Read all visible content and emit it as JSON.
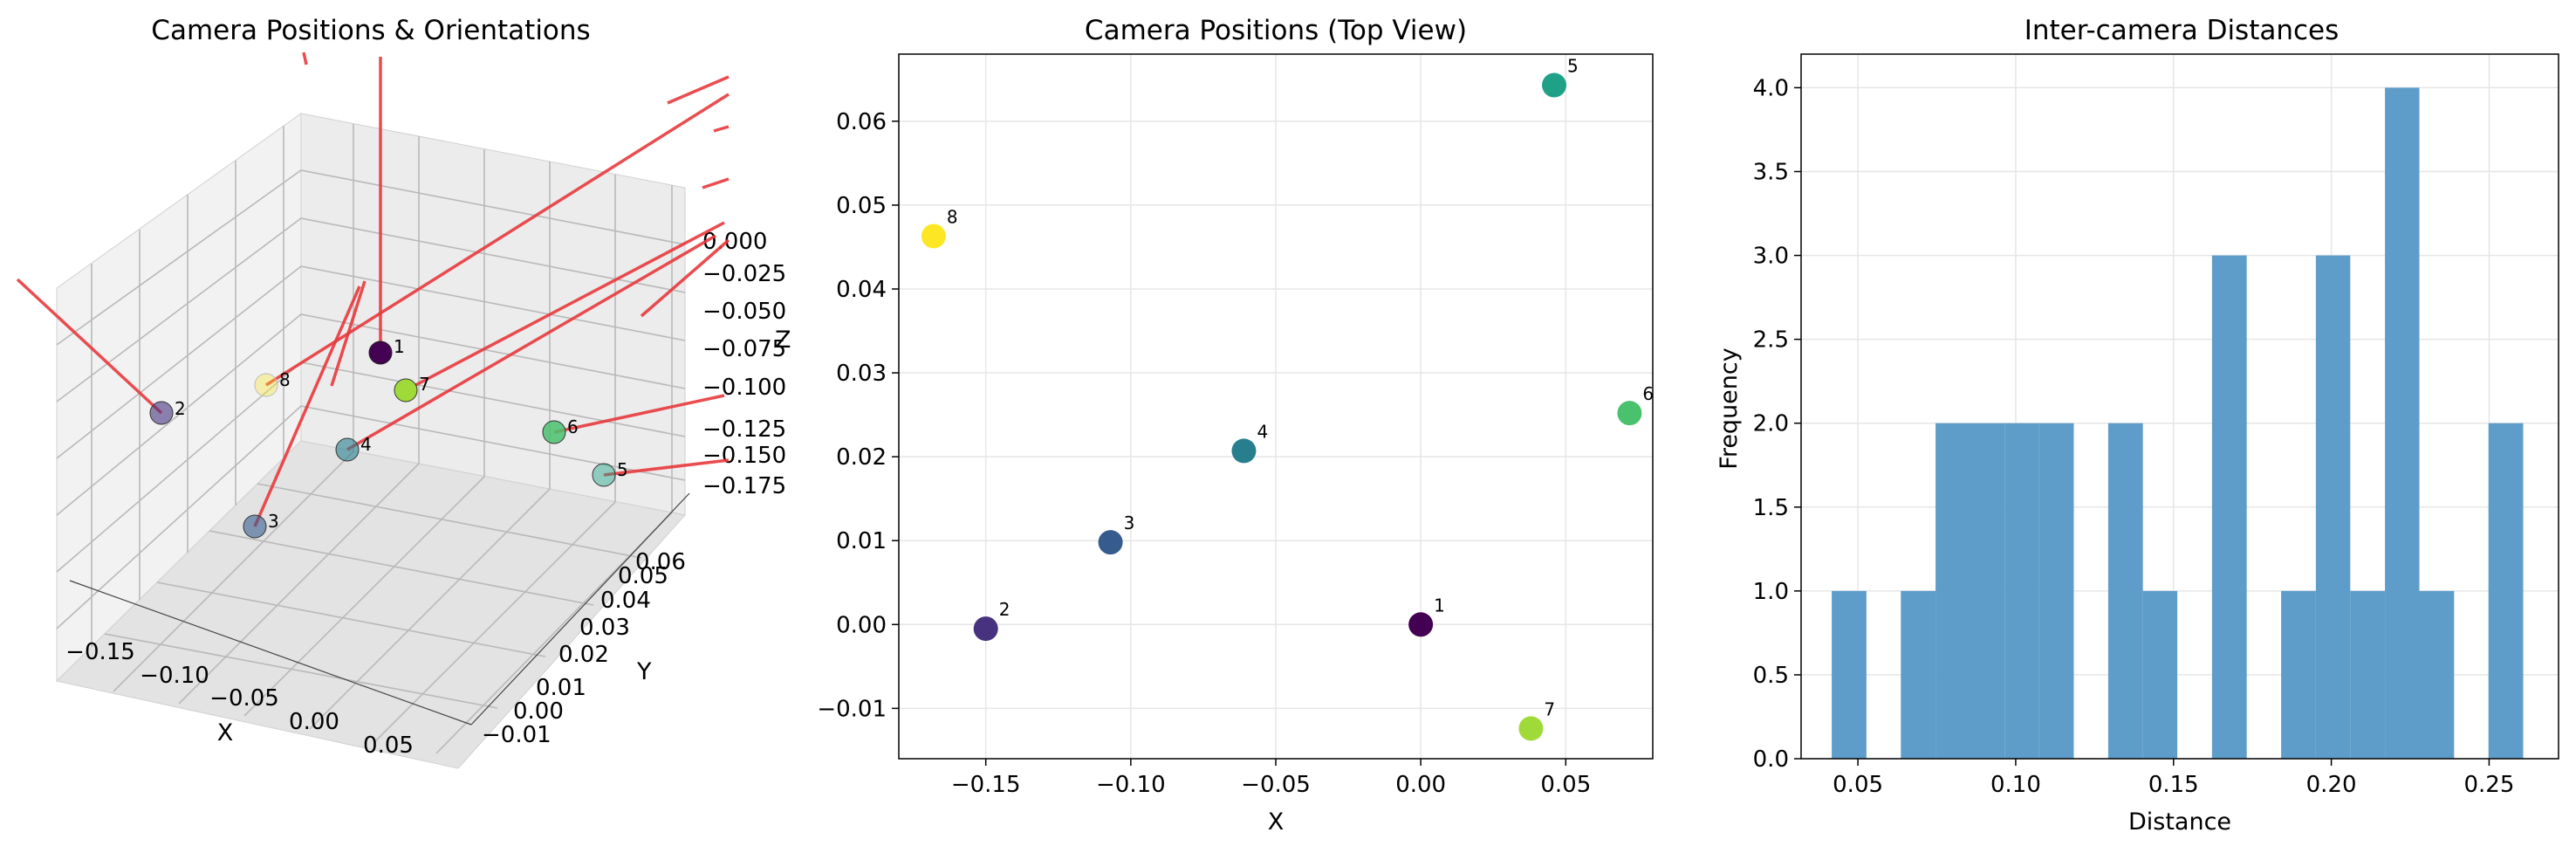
{
  "colors": {
    "histogram": "#5e9dc9",
    "orientation_line": "#e8393c",
    "grid": "#e6e6e6"
  },
  "chart_data": [
    {
      "type": "scatter3d",
      "title": "Camera Positions & Orientations",
      "xlabel": "X",
      "ylabel": "Y",
      "zlabel": "Z",
      "x_ticks": [
        "−0.15",
        "−0.10",
        "−0.05",
        "0.00",
        "0.05"
      ],
      "y_ticks": [
        "−0.01",
        "0.00",
        "0.01",
        "0.02",
        "0.03",
        "0.04",
        "0.05",
        "0.06"
      ],
      "z_ticks": [
        "0.000",
        "−0.025",
        "−0.050",
        "−0.075",
        "−0.100",
        "−0.125",
        "−0.150",
        "−0.175"
      ],
      "points": [
        {
          "label": "1",
          "x": 0.0,
          "y": 0.0,
          "z": 0.0,
          "color": "#440154"
        },
        {
          "label": "2",
          "x": -0.15,
          "y": -0.0005,
          "z": -0.02,
          "color": "#46327e"
        },
        {
          "label": "3",
          "x": -0.107,
          "y": 0.0098,
          "z": -0.11,
          "color": "#365c8d"
        },
        {
          "label": "4",
          "x": -0.061,
          "y": 0.0207,
          "z": -0.075,
          "color": "#277f8e"
        },
        {
          "label": "5",
          "x": 0.046,
          "y": 0.0643,
          "z": -0.1,
          "color": "#1fa187"
        },
        {
          "label": "6",
          "x": 0.072,
          "y": 0.0252,
          "z": -0.06,
          "color": "#4ac16d"
        },
        {
          "label": "7",
          "x": 0.038,
          "y": -0.0124,
          "z": -0.03,
          "color": "#a0da39"
        },
        {
          "label": "8",
          "x": -0.168,
          "y": 0.0463,
          "z": 0.0,
          "color": "#fde725"
        }
      ],
      "grid": true
    },
    {
      "type": "scatter",
      "title": "Camera Positions (Top View)",
      "xlabel": "X",
      "ylabel": "Y",
      "xlim": [
        -0.18,
        0.08
      ],
      "ylim": [
        -0.016,
        0.068
      ],
      "x_ticks": [
        -0.15,
        -0.1,
        -0.05,
        0.0,
        0.05
      ],
      "x_tick_labels": [
        "−0.15",
        "−0.10",
        "−0.05",
        "0.00",
        "0.05"
      ],
      "y_ticks": [
        -0.01,
        0.0,
        0.01,
        0.02,
        0.03,
        0.04,
        0.05,
        0.06
      ],
      "y_tick_labels": [
        "−0.01",
        "0.00",
        "0.01",
        "0.02",
        "0.03",
        "0.04",
        "0.05",
        "0.06"
      ],
      "points": [
        {
          "label": "1",
          "x": 0.0,
          "y": 0.0,
          "color": "#440154"
        },
        {
          "label": "2",
          "x": -0.15,
          "y": -0.0005,
          "color": "#46327e"
        },
        {
          "label": "3",
          "x": -0.107,
          "y": 0.0098,
          "color": "#365c8d"
        },
        {
          "label": "4",
          "x": -0.061,
          "y": 0.0207,
          "color": "#277f8e"
        },
        {
          "label": "5",
          "x": 0.046,
          "y": 0.0643,
          "color": "#1fa187"
        },
        {
          "label": "6",
          "x": 0.072,
          "y": 0.0252,
          "color": "#4ac16d"
        },
        {
          "label": "7",
          "x": 0.038,
          "y": -0.0124,
          "color": "#a0da39"
        },
        {
          "label": "8",
          "x": -0.168,
          "y": 0.0463,
          "color": "#fde725"
        }
      ],
      "grid": true
    },
    {
      "type": "bar",
      "title": "Inter-camera Distances",
      "xlabel": "Distance",
      "ylabel": "Frequency",
      "xlim": [
        0.032,
        0.272
      ],
      "ylim": [
        0,
        4.2
      ],
      "x_ticks": [
        0.05,
        0.1,
        0.15,
        0.2,
        0.25
      ],
      "x_tick_labels": [
        "0.05",
        "0.10",
        "0.15",
        "0.20",
        "0.25"
      ],
      "y_ticks": [
        0,
        0.5,
        1,
        1.5,
        2,
        2.5,
        3,
        3.5,
        4
      ],
      "y_tick_labels": [
        "0.0",
        "0.5",
        "1.0",
        "1.5",
        "2.0",
        "2.5",
        "3.0",
        "3.5",
        "4.0"
      ],
      "bin_edges": [
        0.0417,
        0.0527,
        0.0636,
        0.0746,
        0.0855,
        0.0965,
        0.1074,
        0.1184,
        0.1293,
        0.1403,
        0.1512,
        0.1622,
        0.1732,
        0.1841,
        0.1951,
        0.206,
        0.217,
        0.2279,
        0.2389,
        0.2498,
        0.2608
      ],
      "values": [
        1,
        0,
        1,
        2,
        2,
        2,
        2,
        0,
        2,
        1,
        0,
        3,
        0,
        1,
        3,
        1,
        4,
        1,
        0,
        2
      ],
      "grid": true
    }
  ]
}
